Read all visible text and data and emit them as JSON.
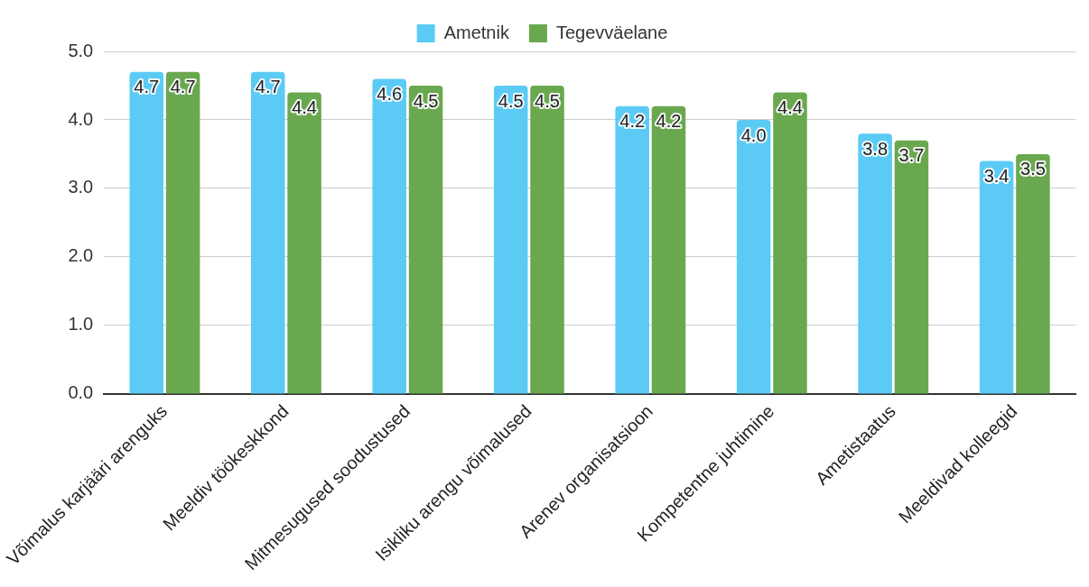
{
  "chart_data": {
    "type": "bar",
    "categories": [
      "Võimalus karjääri arenguks",
      "Meeldiv töökeskkond",
      "Mitmesugused soodustused",
      "Isikliku arengu võimalused",
      "Arenev organisatsioon",
      "Kompetentne juhtimine",
      "Ametistaatus",
      "Meeldivad kolleegid"
    ],
    "series": [
      {
        "name": "Ametnik",
        "color": "#5bcbf5",
        "values": [
          4.7,
          4.7,
          4.6,
          4.5,
          4.2,
          4.0,
          3.8,
          3.4
        ],
        "value_labels": [
          "4.7",
          "4.7",
          "4.6",
          "4.5",
          "4.2",
          "4.0",
          "3.8",
          "3.4"
        ]
      },
      {
        "name": "Tegevväelane",
        "color": "#6aa84f",
        "values": [
          4.7,
          4.4,
          4.5,
          4.5,
          4.2,
          4.4,
          3.7,
          3.5
        ],
        "value_labels": [
          "4.7",
          "4.4",
          "4.5",
          "4.5",
          "4.2",
          "4.4",
          "3.7",
          "3.5"
        ]
      }
    ],
    "ylim": [
      0,
      5
    ],
    "yticks": [
      {
        "value": 0,
        "label": "0.0"
      },
      {
        "value": 1,
        "label": "1.0"
      },
      {
        "value": 2,
        "label": "2.0"
      },
      {
        "value": 3,
        "label": "3.0"
      },
      {
        "value": 4,
        "label": "4.0"
      },
      {
        "value": 5,
        "label": "5.0"
      }
    ],
    "grid": "y",
    "legend": "top"
  }
}
